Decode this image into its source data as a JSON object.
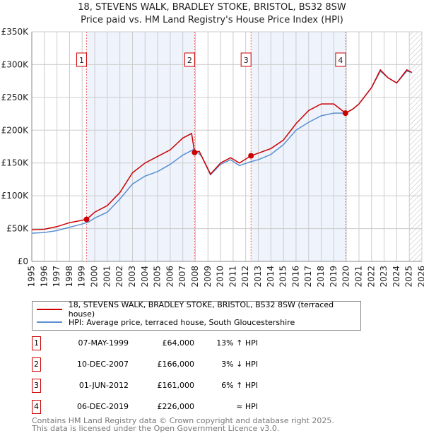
{
  "chart_data": {
    "type": "line",
    "title": "18, STEVENS WALK, BRADLEY STOKE, BRISTOL, BS32 8SW",
    "subtitle": "Price paid vs. HM Land Registry's House Price Index (HPI)",
    "xlim": [
      1995,
      2026
    ],
    "ylim": [
      0,
      350000
    ],
    "x_ticks": [
      "1995",
      "1996",
      "1997",
      "1998",
      "1999",
      "2000",
      "2001",
      "2002",
      "2003",
      "2004",
      "2005",
      "2006",
      "2007",
      "2008",
      "2009",
      "2010",
      "2011",
      "2012",
      "2013",
      "2014",
      "2015",
      "2016",
      "2017",
      "2018",
      "2019",
      "2020",
      "2021",
      "2022",
      "2023",
      "2024",
      "2025",
      "2026"
    ],
    "y_ticks": [
      {
        "v": 0,
        "l": "£0"
      },
      {
        "v": 50000,
        "l": "£50K"
      },
      {
        "v": 100000,
        "l": "£100K"
      },
      {
        "v": 150000,
        "l": "£150K"
      },
      {
        "v": 200000,
        "l": "£200K"
      },
      {
        "v": 250000,
        "l": "£250K"
      },
      {
        "v": 300000,
        "l": "£300K"
      },
      {
        "v": 350000,
        "l": "£350K"
      }
    ],
    "grid": true,
    "series": [
      {
        "name": "18, STEVENS WALK, BRADLEY STOKE, BRISTOL, BS32 8SW (terraced house)",
        "color": "#cc0000",
        "x": [
          1995,
          1996,
          1997,
          1998,
          1999.35,
          2000,
          2001,
          2002,
          2003,
          2004,
          2005,
          2006,
          2007,
          2007.7,
          2007.94,
          2008.3,
          2009.2,
          2010,
          2010.8,
          2011.5,
          2012.42,
          2013,
          2014,
          2015,
          2016,
          2017,
          2018,
          2019,
          2019.93,
          2020.5,
          2021,
          2022,
          2022.7,
          2023.3,
          2024,
          2024.8,
          2025.2
        ],
        "y": [
          48000,
          49000,
          53000,
          59000,
          64000,
          75000,
          85000,
          105000,
          135000,
          150000,
          160000,
          170000,
          188000,
          195000,
          166000,
          168000,
          133000,
          150000,
          158000,
          150000,
          161000,
          165000,
          172000,
          185000,
          210000,
          230000,
          240000,
          240000,
          226000,
          232000,
          240000,
          265000,
          292000,
          280000,
          272000,
          292000,
          288000
        ]
      },
      {
        "name": "HPI: Average price, terraced house, South Gloucestershire",
        "color": "#5b8fd0",
        "x": [
          1995,
          1996,
          1997,
          1998,
          1999,
          1999.5,
          2000,
          2001,
          2002,
          2003,
          2004,
          2005,
          2006,
          2007,
          2007.9,
          2008.5,
          2009.2,
          2010,
          2010.8,
          2011.5,
          2012.4,
          2013,
          2014,
          2015,
          2016,
          2017,
          2018,
          2019,
          2019.9,
          2020.5,
          2021,
          2022,
          2022.7,
          2023.3,
          2024,
          2024.8,
          2025.2
        ],
        "y": [
          43000,
          44000,
          47000,
          52000,
          57000,
          60000,
          66000,
          75000,
          95000,
          118000,
          130000,
          137000,
          148000,
          162000,
          171000,
          160000,
          132000,
          148000,
          155000,
          146000,
          152000,
          155000,
          163000,
          178000,
          200000,
          212000,
          222000,
          226000,
          226000,
          232000,
          240000,
          265000,
          290000,
          280000,
          272000,
          290000,
          288000
        ]
      }
    ],
    "sales": [
      {
        "n": "1",
        "date": "07-MAY-1999",
        "x": 1999.35,
        "price": "£64,000",
        "value": 64000,
        "hpi": "13% ↑ HPI"
      },
      {
        "n": "2",
        "date": "10-DEC-2007",
        "x": 2007.94,
        "price": "£166,000",
        "value": 166000,
        "hpi": "3% ↓ HPI"
      },
      {
        "n": "3",
        "date": "01-JUN-2012",
        "x": 2012.42,
        "price": "£161,000",
        "value": 161000,
        "hpi": "6% ↑ HPI"
      },
      {
        "n": "4",
        "date": "06-DEC-2019",
        "x": 2019.93,
        "price": "£226,000",
        "value": 226000,
        "hpi": "≈ HPI"
      }
    ],
    "forecast_start": 2025.0
  },
  "footer": {
    "line1": "Contains HM Land Registry data © Crown copyright and database right 2025.",
    "line2": "This data is licensed under the Open Government Licence v3.0."
  }
}
